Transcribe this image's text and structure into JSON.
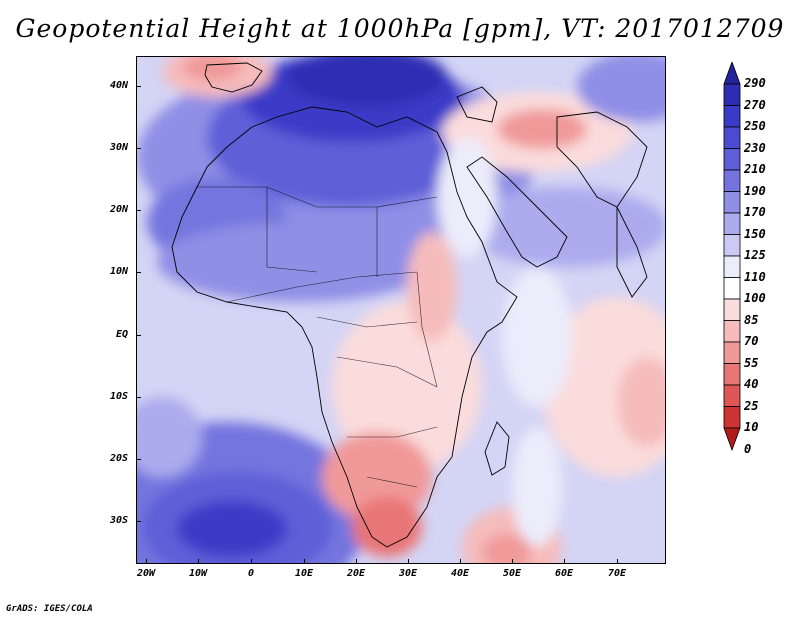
{
  "title": "Geopotential Height at 1000hPa [gpm], VT: 2017012709",
  "footer": "GrADS: IGES/COLA",
  "map": {
    "lat_labels": [
      "40N",
      "30N",
      "20N",
      "10N",
      "EQ",
      "10S",
      "20S",
      "30S"
    ],
    "lon_labels": [
      "20W",
      "10W",
      "0",
      "10E",
      "20E",
      "30E",
      "40E",
      "50E",
      "60E",
      "70E"
    ]
  },
  "colorbar": {
    "levels": [
      "290",
      "270",
      "250",
      "230",
      "210",
      "190",
      "170",
      "150",
      "125",
      "110",
      "100",
      "85",
      "70",
      "55",
      "40",
      "25",
      "10",
      "0"
    ],
    "colors": [
      "#23239b",
      "#2d2db4",
      "#3a3ac8",
      "#4b4bd2",
      "#5e5ed8",
      "#7474df",
      "#8f8fe6",
      "#ababee",
      "#cacaf5",
      "#ececfb",
      "#ffffff",
      "#fbdcdc",
      "#f6bcbc",
      "#f09999",
      "#e97676",
      "#e05555",
      "#cc3333",
      "#b01c1c"
    ]
  }
}
